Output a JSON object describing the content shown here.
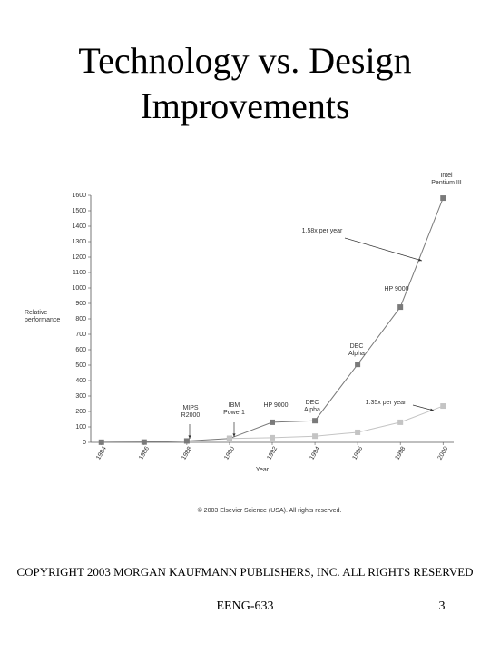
{
  "slide": {
    "title": "Technology vs. Design Improvements",
    "copyright": "COPYRIGHT 2003 MORGAN KAUFMANN PUBLISHERS, INC. ALL RIGHTS RESERVED",
    "course": "EENG-633",
    "page_number": "3"
  },
  "chart_data": {
    "type": "line",
    "x_label": "Year",
    "y_label": "Relative performance",
    "credit": "© 2003 Elsevier Science (USA). All rights reserved.",
    "x": [
      1984,
      1986,
      1988,
      1990,
      1992,
      1994,
      1996,
      1998,
      2000
    ],
    "series": [
      {
        "color": "#7a7a7a",
        "values": [
          1,
          2,
          9,
          25,
          130,
          140,
          505,
          876,
          1582
        ]
      },
      {
        "color": "#c4c4c4",
        "values": [
          null,
          null,
          null,
          25,
          30,
          40,
          65,
          130,
          235
        ]
      }
    ],
    "xlim": [
      1983.5,
      2000.5
    ],
    "xticks": [
      1984,
      1986,
      1988,
      1990,
      1992,
      1994,
      1996,
      1998,
      2000
    ],
    "ylim": [
      0,
      1600
    ],
    "yticks": [
      0,
      100,
      200,
      300,
      400,
      500,
      600,
      700,
      800,
      900,
      1000,
      1100,
      1200,
      1300,
      1400,
      1500,
      1600
    ],
    "annotations": [
      "Intel Pentium III",
      "1.58x per year",
      "HP 9000",
      "DEC Alpha",
      "1.35x per year",
      "MIPS R2000",
      "IBM Power1",
      "HP 9000",
      "DEC Alpha"
    ]
  }
}
